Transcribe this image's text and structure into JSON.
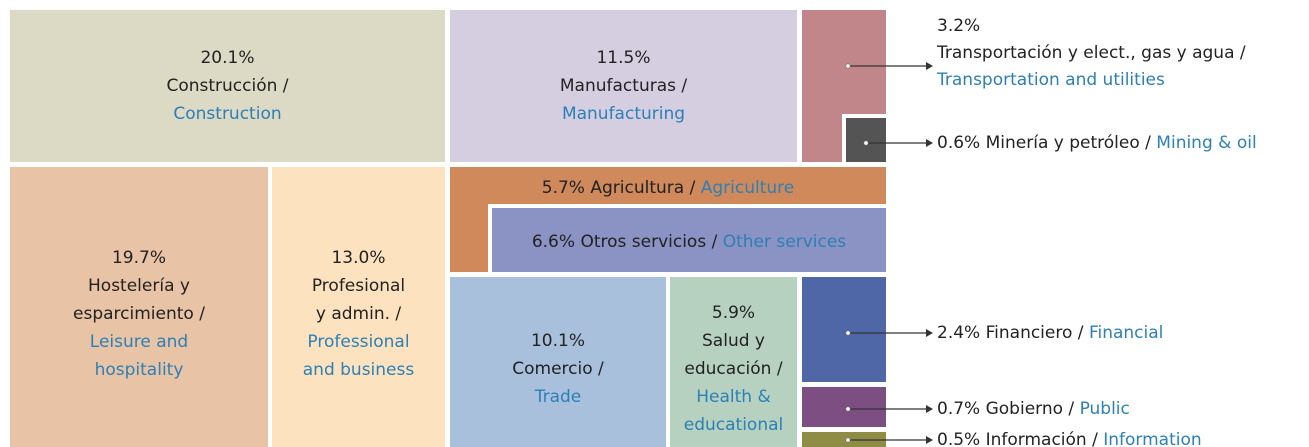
{
  "chart_data": {
    "type": "treemap",
    "labels_es": [
      [
        "Construcción /"
      ],
      [
        "Manufacturas /"
      ],
      [
        "Transportación y elect., gas y agua /"
      ],
      [
        "Minería y petróleo /"
      ],
      [
        "Hostelería y",
        "esparcimiento /"
      ],
      [
        "Profesional",
        "y admin. /"
      ],
      [
        "Agricultura /"
      ],
      [
        "Otros servicios /"
      ],
      [
        "Comercio /"
      ],
      [
        "Salud y",
        "educación /"
      ],
      [
        "Financiero /"
      ],
      [
        "Gobierno /"
      ],
      [
        "Información /"
      ]
    ],
    "labels_en": [
      [
        "Construction"
      ],
      [
        "Manufacturing"
      ],
      [
        "Transportation and utilities"
      ],
      [
        "Mining & oil"
      ],
      [
        "Leisure and",
        "hospitality"
      ],
      [
        "Professional",
        "and business"
      ],
      [
        "Agriculture"
      ],
      [
        "Other services"
      ],
      [
        "Trade"
      ],
      [
        "Health &",
        "educational"
      ],
      [
        "Financial"
      ],
      [
        "Public"
      ],
      [
        "Information"
      ]
    ],
    "values": [
      20.1,
      11.5,
      3.2,
      0.6,
      19.7,
      13.0,
      5.7,
      6.6,
      10.1,
      5.9,
      2.4,
      0.7,
      0.5
    ],
    "value_labels": [
      "20.1%",
      "11.5%",
      "3.2%",
      "0.6%",
      "19.7%",
      "13.0%",
      "5.7%",
      "6.6%",
      "10.1%",
      "5.9%",
      "2.4%",
      "0.7%",
      "0.5%"
    ],
    "colors": [
      "#dcd9c4",
      "#d5cde0",
      "#c0868a",
      "#545454",
      "#e8c3a6",
      "#fde2c0",
      "#cf895b",
      "#8b92c4",
      "#a9c0dc",
      "#b7d1c1",
      "#4f67a6",
      "#7c4e81",
      "#8f8c46"
    ]
  }
}
